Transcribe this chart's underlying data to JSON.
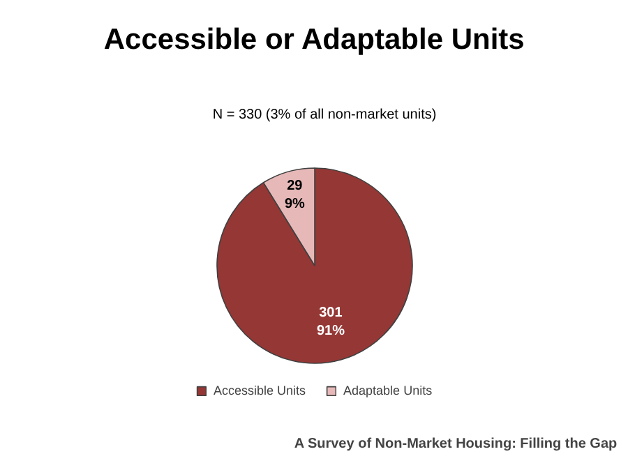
{
  "chart_data": {
    "type": "pie",
    "title": "Accessible or Adaptable Units",
    "subtitle": "N = 330 (3% of all non-market units)",
    "categories": [
      "Accessible Units",
      "Adaptable Units"
    ],
    "values": [
      301,
      29
    ],
    "colors": [
      "#953735",
      "#e6b9b8"
    ],
    "value_labels": [
      "301\n91%",
      "29\n9%"
    ],
    "legend": "bottom",
    "annotations": [
      "A Survey of Non-Market Housing: Filling the Gap"
    ]
  }
}
